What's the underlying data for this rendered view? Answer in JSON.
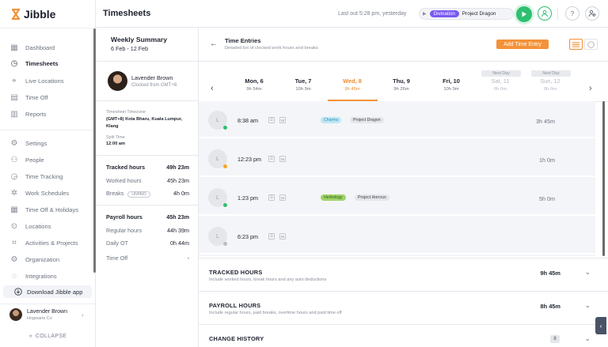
{
  "app": {
    "name": "Jibble"
  },
  "sidebar": {
    "items": [
      {
        "label": "Dashboard",
        "icon": "dashboard-icon"
      },
      {
        "label": "Timesheets",
        "icon": "clock-icon",
        "active": true
      },
      {
        "label": "Live Locations",
        "icon": "location-pin-icon"
      },
      {
        "label": "Time Off",
        "icon": "calendar-icon"
      },
      {
        "label": "Reports",
        "icon": "report-icon"
      },
      {
        "label": "Settings",
        "icon": "gear-icon"
      },
      {
        "label": "People",
        "icon": "people-icon"
      },
      {
        "label": "Time Tracking",
        "icon": "time-tracking-icon"
      },
      {
        "label": "Work Schedules",
        "icon": "schedule-icon"
      },
      {
        "label": "Time Off & Holidays",
        "icon": "calendar-holiday-icon"
      },
      {
        "label": "Locations",
        "icon": "location-icon"
      },
      {
        "label": "Activities & Projects",
        "icon": "tag-icon"
      },
      {
        "label": "Organization",
        "icon": "organization-icon"
      },
      {
        "label": "Integrations",
        "icon": "integrations-icon"
      }
    ],
    "download_label": "Download Jibble app",
    "user": {
      "name": "Lavender Brown",
      "org": "Hogwarts Co"
    },
    "collapse_label": "COLLAPSE"
  },
  "header": {
    "title": "Timesheets",
    "last_out": "Last out 5:28 pm, yesterday",
    "activity_tag": "Divination",
    "project": "Project Dragon",
    "colors": {
      "accent": "#f3923a",
      "play": "#2fbf71",
      "activity": "#7a5af0"
    }
  },
  "summary": {
    "title": "Weekly Summary",
    "range": "6 Feb - 12 Feb",
    "person": {
      "name": "Lavender Brown",
      "sub": "Clocked from GMT+8"
    },
    "timezone_label": "Timesheet Timezone",
    "timezone_value": "(GMT+8) Kota Bharu, Kuala Lumpur, Klang",
    "split_label": "Split Time",
    "split_value": "12:00 am",
    "tracked": {
      "label": "Tracked hours",
      "value": "49h 23m"
    },
    "worked": {
      "label": "Worked hours",
      "value": "45h 23m"
    },
    "breaks": {
      "label": "Breaks",
      "badge": "UNPAID",
      "value": "4h 0m"
    },
    "payroll": {
      "label": "Payroll hours",
      "value": "45h 23m"
    },
    "regular": {
      "label": "Regular hours",
      "value": "44h 39m"
    },
    "daily_ot": {
      "label": "Daily OT",
      "value": "0h 44m"
    },
    "time_off": {
      "label": "Time Off",
      "value": "-"
    }
  },
  "time_entries": {
    "title": "Time Entries",
    "subtitle": "Detailed list of clocked work hours and breaks",
    "add_button": "Add Time Entry",
    "next_day_label": "Next Day",
    "days": [
      {
        "name": "Mon, 6",
        "hours": "9h 54m"
      },
      {
        "name": "Tue, 7",
        "hours": "10h 9m"
      },
      {
        "name": "Wed, 8",
        "hours": "9h 45m",
        "active": true
      },
      {
        "name": "Thu, 9",
        "hours": "9h 26m"
      },
      {
        "name": "Fri, 10",
        "hours": "10h 9m"
      },
      {
        "name": "Sat, 11",
        "hours": "0h 0m",
        "muted": true
      },
      {
        "name": "Sun, 12",
        "hours": "0h 0m",
        "muted": true
      }
    ],
    "entries": [
      {
        "avatar": "L",
        "time": "8:38 am",
        "dot": "#2fbf71",
        "icon1": "☰",
        "icon2": "M",
        "activity": "Charms",
        "activity_color": "#bfe7f3",
        "activity_text": "#2f8fb3",
        "project": "Project Dragon",
        "duration": "3h 45m"
      },
      {
        "avatar": "L",
        "time": "12:23 pm",
        "dot": "#f5a623",
        "icon1": "☰",
        "icon2": "M",
        "activity": "",
        "project": "",
        "duration": "1h 0m"
      },
      {
        "avatar": "L",
        "time": "1:23 pm",
        "dot": "#2fbf71",
        "icon1": "☰",
        "icon2": "M",
        "activity": "Herbology",
        "activity_color": "#9fd46b",
        "activity_text": "#2f5f10",
        "project": "Project Horcrux",
        "duration": "5h 0m"
      },
      {
        "avatar": "L",
        "time": "6:23 pm",
        "dot": "#b8bcc4",
        "icon1": "☰",
        "icon2": "M",
        "activity": "",
        "project": "",
        "duration": ""
      }
    ]
  },
  "sections": {
    "tracked": {
      "title": "TRACKED HOURS",
      "sub": "Include worked hours, break hours and any auto deductions",
      "value": "9h 45m"
    },
    "payroll": {
      "title": "PAYROLL HOURS",
      "sub": "Include regular hours, paid breaks, overtime hours and paid time off",
      "value": "8h 45m"
    },
    "history": {
      "title": "CHANGE HISTORY",
      "count": "8"
    }
  }
}
